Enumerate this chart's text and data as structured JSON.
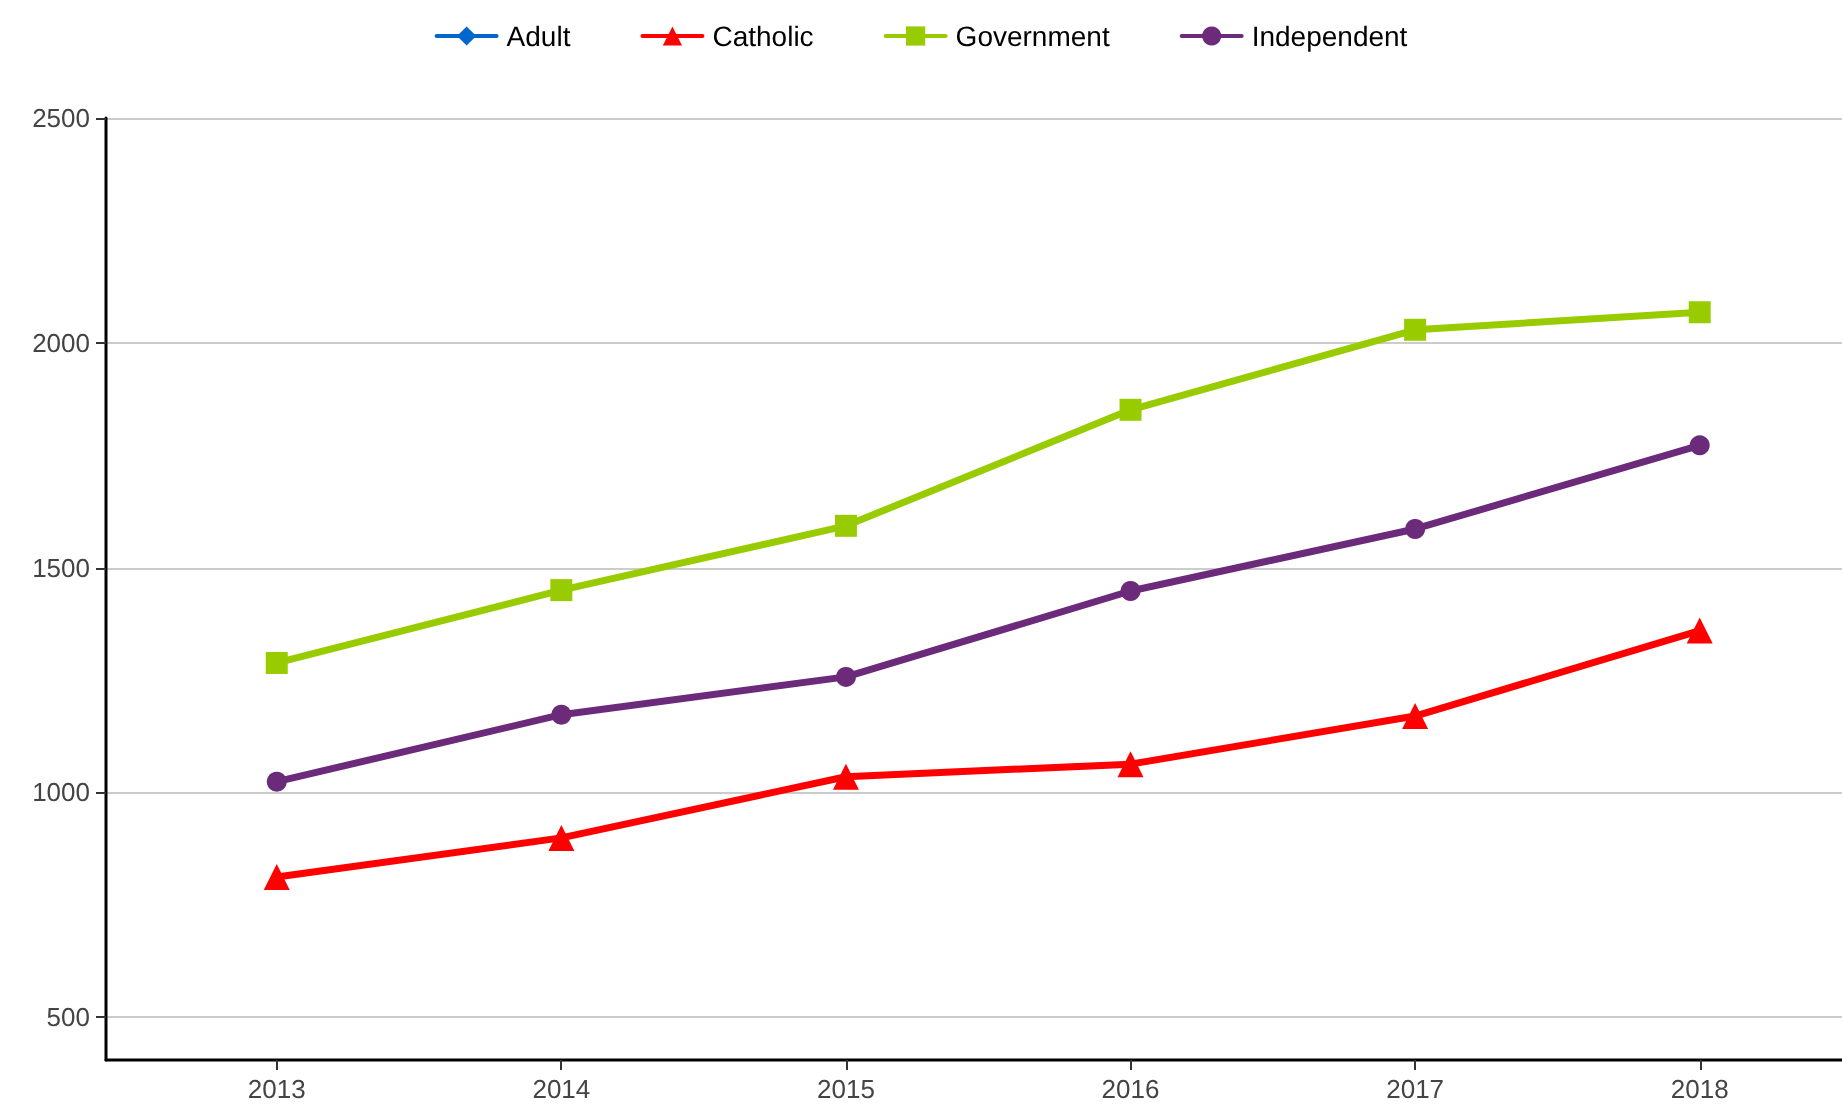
{
  "chart_data": {
    "type": "line",
    "x": [
      2013,
      2014,
      2015,
      2016,
      2017,
      2018
    ],
    "series": [
      {
        "name": "Adult",
        "color": "#0066cc",
        "marker": "diamond",
        "values": [
          null,
          null,
          null,
          null,
          null,
          null
        ]
      },
      {
        "name": "Catholic",
        "color": "#ff0000",
        "marker": "triangle",
        "values": [
          812,
          899,
          1035,
          1063,
          1170,
          1360
        ]
      },
      {
        "name": "Government",
        "color": "#99cc00",
        "marker": "square",
        "values": [
          1288,
          1450,
          1593,
          1851,
          2029,
          2068
        ]
      },
      {
        "name": "Independent",
        "color": "#6b2a7a",
        "marker": "circle",
        "values": [
          1024,
          1173,
          1257,
          1448,
          1586,
          1772
        ]
      }
    ],
    "xlim": [
      2012.4,
      2018.5
    ],
    "xticks": [
      2013,
      2014,
      2015,
      2016,
      2017,
      2018
    ],
    "ylim": [
      405,
      2500
    ],
    "yticks": [
      500,
      1000,
      1500,
      2000,
      2500
    ],
    "grid": "y",
    "legend": "top",
    "line_style": "solid"
  }
}
